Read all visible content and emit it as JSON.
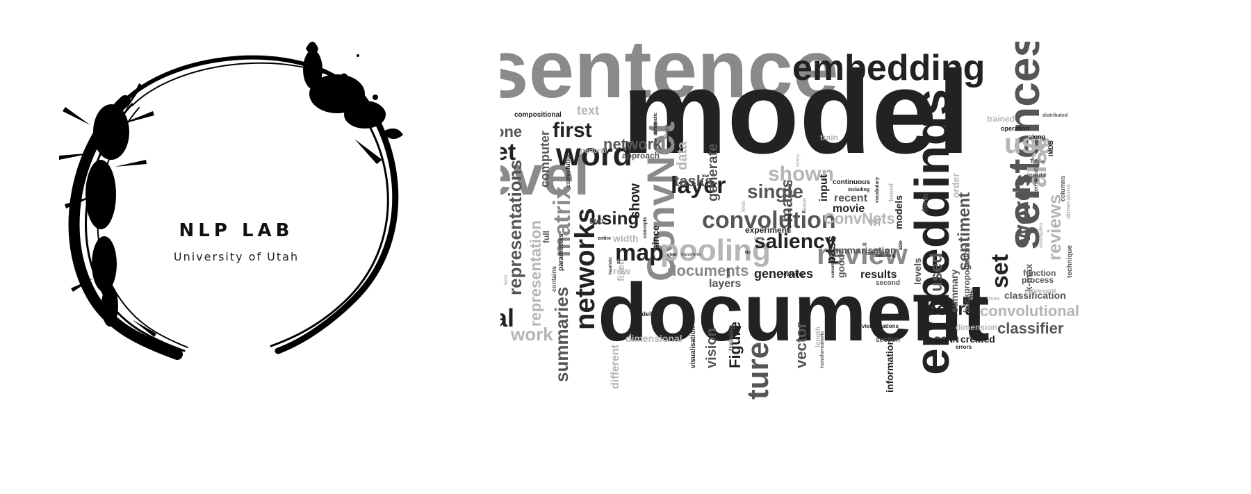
{
  "logo": {
    "title": "NLP LAB",
    "subtitle": "University of Utah",
    "ink_color": "#000000"
  },
  "word_cloud": {
    "palette": {
      "dark": "#222222",
      "mid": "#555555",
      "light": "#8a8a8a",
      "pale": "#b5b5b5"
    },
    "words": [
      "sentence",
      "embedding",
      "model",
      "document",
      "embeddings",
      "level",
      "word",
      "sentences",
      "ConvNet",
      "pooling",
      "convolution",
      "review",
      "networks",
      "matrix",
      "map",
      "layer",
      "saliency",
      "single",
      "maps",
      "shown",
      "use",
      "also",
      "set",
      "words",
      "reviews",
      "sentiment",
      "neural",
      "convolutional",
      "classifier",
      "classification",
      "first",
      "network",
      "et",
      "al",
      "one",
      "text",
      "compositional",
      "computer",
      "representations",
      "representation",
      "summaries",
      "work",
      "using",
      "show",
      "tasks",
      "data",
      "generate",
      "documents",
      "layers",
      "generates",
      "results",
      "used",
      "vector",
      "Figure",
      "vision",
      "ture",
      "information",
      "DCNN",
      "created",
      "dimension",
      "dimensional",
      "different",
      "width",
      "row",
      "fixed",
      "two",
      "full",
      "summary",
      "backpropogation",
      "k-max",
      "process",
      "function",
      "represent",
      "technique",
      "train",
      "trained",
      "operation",
      "along",
      "IMDB",
      "Table",
      "columns",
      "inputs",
      "input",
      "recent",
      "movie",
      "wf",
      "ConvNets",
      "summarisation",
      "experiment",
      "good",
      "pass",
      "second",
      "levels",
      "order",
      "form",
      "models",
      "since",
      "continuous",
      "approach",
      "perform",
      "convolutions",
      "parameters",
      "contains",
      "modelling",
      "visualisation",
      "training",
      "length",
      "section",
      "visualisations",
      "errors",
      "uses",
      "size",
      "intermediate",
      "examples",
      "dimensions",
      "distributed",
      "automatic",
      "block",
      "concepts",
      "entire",
      "transformations",
      "learning",
      "semantics",
      "meaning",
      "obtained",
      "able",
      "based",
      "vocabulary",
      "including",
      "fewer",
      "important",
      "every",
      "loss",
      "task",
      "clear",
      "transform",
      "best",
      "heuristic",
      "space",
      "label",
      "No",
      "low"
    ]
  }
}
